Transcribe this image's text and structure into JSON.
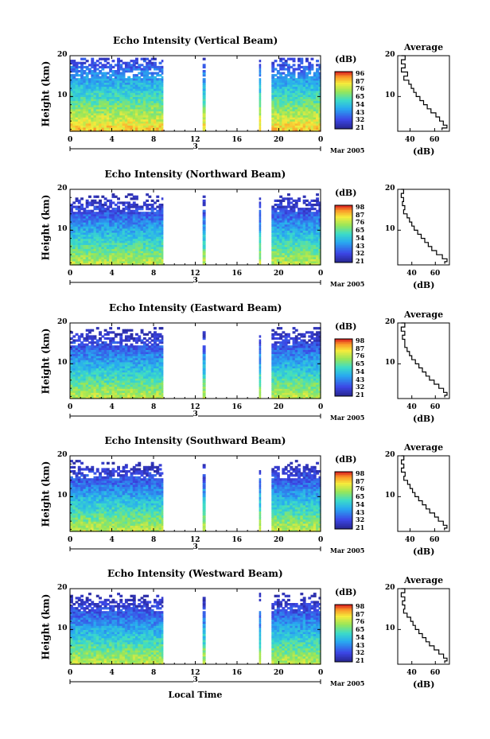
{
  "x_title": "Local Time",
  "chart_data": [
    {
      "type": "heatmap",
      "title": "Echo Intensity (Vertical Beam)",
      "ylabel": "Height (km)",
      "y_ticks": [
        "20",
        "10"
      ],
      "ylim": [
        1.5,
        20
      ],
      "x_ticks": [
        "0",
        "4",
        "8",
        "12",
        "16",
        "20",
        "0"
      ],
      "xlim": [
        0,
        24
      ],
      "day_label": "3",
      "month_label": "Mar 2005",
      "colorbar": {
        "unit": "(dB)",
        "ticks": [
          "96",
          "87",
          "76",
          "65",
          "54",
          "43",
          "32",
          "21"
        ]
      },
      "average": {
        "type": "line",
        "title": "Average",
        "xlabel": "(dB)",
        "x_ticks": [
          "40",
          "60"
        ],
        "y_ticks": [
          "20",
          "10"
        ],
        "xlim": [
          30,
          72
        ],
        "ylim": [
          1.5,
          20
        ],
        "points": [
          [
            33,
            20
          ],
          [
            36,
            19
          ],
          [
            33,
            18
          ],
          [
            36,
            17
          ],
          [
            33,
            16
          ],
          [
            38,
            15
          ],
          [
            35,
            14
          ],
          [
            39,
            13
          ],
          [
            41,
            12
          ],
          [
            43,
            11
          ],
          [
            45,
            10
          ],
          [
            48,
            9
          ],
          [
            51,
            8
          ],
          [
            54,
            7
          ],
          [
            57,
            6
          ],
          [
            61,
            5
          ],
          [
            64,
            4
          ],
          [
            67,
            3
          ],
          [
            70,
            2.3
          ],
          [
            66,
            1.8
          ]
        ]
      }
    },
    {
      "type": "heatmap",
      "title": "Echo Intensity (Northward Beam)",
      "ylabel": "Height (km)",
      "y_ticks": [
        "20",
        "10"
      ],
      "ylim": [
        1.5,
        20
      ],
      "x_ticks": [
        "0",
        "4",
        "8",
        "12",
        "16",
        "20",
        "0"
      ],
      "xlim": [
        0,
        24
      ],
      "day_label": "3",
      "month_label": "Mar 2005",
      "colorbar": {
        "unit": "(dB)",
        "ticks": [
          "98",
          "87",
          "76",
          "65",
          "54",
          "43",
          "32",
          "21"
        ]
      },
      "average": {
        "type": "line",
        "title": "",
        "xlabel": "(dB)",
        "x_ticks": [
          "40",
          "60"
        ],
        "y_ticks": [
          "20",
          "10"
        ],
        "xlim": [
          28,
          72
        ],
        "ylim": [
          1.5,
          20
        ],
        "points": [
          [
            31,
            20
          ],
          [
            33,
            19
          ],
          [
            31,
            18
          ],
          [
            33,
            17
          ],
          [
            32,
            16
          ],
          [
            34,
            15
          ],
          [
            33,
            14
          ],
          [
            36,
            13
          ],
          [
            38,
            12
          ],
          [
            40,
            11
          ],
          [
            42,
            10
          ],
          [
            45,
            9
          ],
          [
            48,
            8
          ],
          [
            51,
            7
          ],
          [
            54,
            6
          ],
          [
            57,
            5
          ],
          [
            61,
            4
          ],
          [
            66,
            3
          ],
          [
            70,
            2.3
          ],
          [
            68,
            1.8
          ]
        ]
      }
    },
    {
      "type": "heatmap",
      "title": "Echo Intensity (Eastward Beam)",
      "ylabel": "Height (km)",
      "y_ticks": [
        "20",
        "10"
      ],
      "ylim": [
        1.5,
        20
      ],
      "x_ticks": [
        "0",
        "4",
        "8",
        "12",
        "16",
        "20",
        "0"
      ],
      "xlim": [
        0,
        24
      ],
      "day_label": "3",
      "month_label": "Mar 2005",
      "colorbar": {
        "unit": "(dB)",
        "ticks": [
          "98",
          "87",
          "76",
          "65",
          "54",
          "43",
          "32",
          "21"
        ]
      },
      "average": {
        "type": "line",
        "title": "Average",
        "xlabel": "(dB)",
        "x_ticks": [
          "40",
          "60"
        ],
        "y_ticks": [
          "20",
          "10"
        ],
        "xlim": [
          28,
          72
        ],
        "ylim": [
          1.5,
          20
        ],
        "points": [
          [
            31,
            20
          ],
          [
            34,
            19
          ],
          [
            31,
            18
          ],
          [
            34,
            17
          ],
          [
            32,
            16
          ],
          [
            34,
            15
          ],
          [
            34,
            14
          ],
          [
            36,
            13
          ],
          [
            38,
            12
          ],
          [
            40,
            11
          ],
          [
            43,
            10
          ],
          [
            46,
            9
          ],
          [
            49,
            8
          ],
          [
            52,
            7
          ],
          [
            55,
            6
          ],
          [
            59,
            5
          ],
          [
            63,
            4
          ],
          [
            67,
            3
          ],
          [
            70,
            2.3
          ],
          [
            68,
            1.8
          ]
        ]
      }
    },
    {
      "type": "heatmap",
      "title": "Echo Intensity (Southward Beam)",
      "ylabel": "Height (km)",
      "y_ticks": [
        "20",
        "10"
      ],
      "ylim": [
        1.5,
        20
      ],
      "x_ticks": [
        "0",
        "4",
        "8",
        "12",
        "16",
        "20",
        "0"
      ],
      "xlim": [
        0,
        24
      ],
      "day_label": "3",
      "month_label": "Mar 2005",
      "colorbar": {
        "unit": "(dB)",
        "ticks": [
          "98",
          "87",
          "76",
          "65",
          "54",
          "43",
          "32",
          "21"
        ]
      },
      "average": {
        "type": "line",
        "title": "Average",
        "xlabel": "(dB)",
        "x_ticks": [
          "40",
          "60"
        ],
        "y_ticks": [
          "20",
          "10"
        ],
        "xlim": [
          30,
          72
        ],
        "ylim": [
          1.5,
          20
        ],
        "points": [
          [
            33,
            20
          ],
          [
            35,
            19
          ],
          [
            33,
            18
          ],
          [
            35,
            17
          ],
          [
            33,
            16
          ],
          [
            36,
            15
          ],
          [
            35,
            14
          ],
          [
            38,
            13
          ],
          [
            40,
            12
          ],
          [
            42,
            11
          ],
          [
            44,
            10
          ],
          [
            47,
            9
          ],
          [
            50,
            8
          ],
          [
            53,
            7
          ],
          [
            56,
            6
          ],
          [
            60,
            5
          ],
          [
            63,
            4
          ],
          [
            67,
            3
          ],
          [
            70,
            2.3
          ],
          [
            68,
            1.8
          ]
        ]
      }
    },
    {
      "type": "heatmap",
      "title": "Echo Intensity (Westward Beam)",
      "ylabel": "Height (km)",
      "y_ticks": [
        "20",
        "10"
      ],
      "ylim": [
        1.5,
        20
      ],
      "x_ticks": [
        "0",
        "4",
        "8",
        "12",
        "16",
        "20",
        "0"
      ],
      "xlim": [
        0,
        24
      ],
      "day_label": "3",
      "month_label": "Mar 2005",
      "colorbar": {
        "unit": "(dB)",
        "ticks": [
          "98",
          "87",
          "76",
          "65",
          "54",
          "43",
          "32",
          "21"
        ]
      },
      "average": {
        "type": "line",
        "title": "Average",
        "xlabel": "(dB)",
        "x_ticks": [
          "40",
          "60"
        ],
        "y_ticks": [
          "20",
          "10"
        ],
        "xlim": [
          28,
          72
        ],
        "ylim": [
          1.5,
          20
        ],
        "points": [
          [
            31,
            20
          ],
          [
            34,
            19
          ],
          [
            31,
            18
          ],
          [
            34,
            17
          ],
          [
            32,
            16
          ],
          [
            34,
            15
          ],
          [
            33,
            14
          ],
          [
            36,
            13
          ],
          [
            39,
            12
          ],
          [
            41,
            11
          ],
          [
            43,
            10
          ],
          [
            46,
            9
          ],
          [
            49,
            8
          ],
          [
            52,
            7
          ],
          [
            55,
            6
          ],
          [
            59,
            5
          ],
          [
            63,
            4
          ],
          [
            67,
            3
          ],
          [
            70,
            2.3
          ],
          [
            68,
            1.8
          ]
        ]
      }
    }
  ]
}
